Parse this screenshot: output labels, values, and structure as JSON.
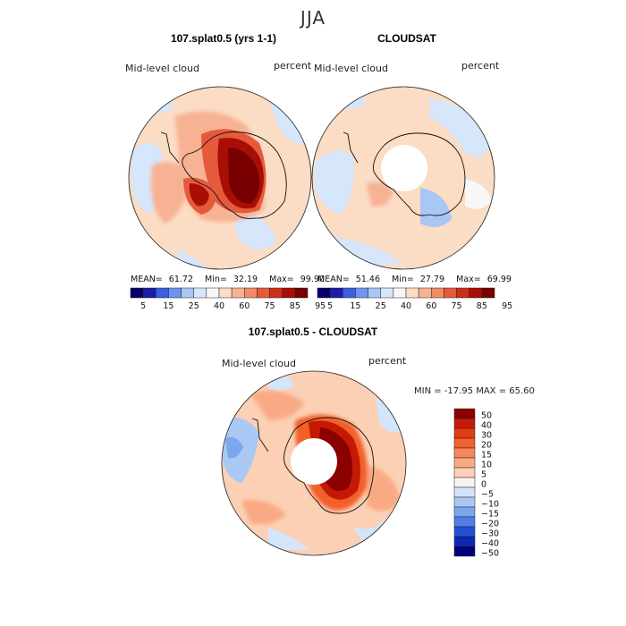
{
  "page": {
    "title": "JJA"
  },
  "panels": [
    {
      "title": "107.splat0.5 (yrs 1-1)",
      "variable": "Mid-level cloud",
      "units": "percent",
      "stats": {
        "mean_label": "MEAN=",
        "mean": "61.72",
        "min_label": "Min=",
        "min": "32.19",
        "max_label": "Max=",
        "max": "99.90"
      }
    },
    {
      "title": "CLOUDSAT",
      "variable": "Mid-level cloud",
      "units": "percent",
      "stats": {
        "mean_label": "MEAN=",
        "mean": "51.46",
        "min_label": "Min=",
        "min": "27.79",
        "max_label": "Max=",
        "max": "69.99"
      }
    },
    {
      "title": "107.splat0.5 - CLOUDSAT",
      "variable": "Mid-level cloud",
      "units": "percent",
      "minmax": "MIN = -17.95 MAX =   65.60"
    }
  ],
  "colorbars": {
    "abs": {
      "tick_labels": [
        "5",
        "15",
        "25",
        "40",
        "60",
        "75",
        "85",
        "95"
      ],
      "colors": [
        "#08006b",
        "#1c1ca8",
        "#3a5ee0",
        "#6f95ee",
        "#a9c6f5",
        "#d6e6fb",
        "#f7f7f7",
        "#fbdcc4",
        "#f7b294",
        "#f18a67",
        "#e65a3c",
        "#cc2e17",
        "#a80e05",
        "#780000"
      ]
    },
    "diff": {
      "labels": [
        "50",
        "40",
        "30",
        "20",
        "15",
        "10",
        "5",
        "0",
        "−5",
        "−10",
        "−15",
        "−20",
        "−30",
        "−40",
        "−50"
      ],
      "colors": [
        "#8b0000",
        "#c41a05",
        "#e33b12",
        "#f2602c",
        "#f7865a",
        "#f9aa85",
        "#fbd0b4",
        "#f7f3ee",
        "#d4e4fa",
        "#a9c8f4",
        "#7ca6ee",
        "#4f7fe6",
        "#2450d8",
        "#0c27b4",
        "#00007a"
      ]
    }
  },
  "chart_data": [
    {
      "type": "heatmap",
      "title": "107.splat0.5 (yrs 1-1)",
      "projection": "south-polar stereographic",
      "variable": "Mid-level cloud",
      "units": "percent",
      "mean": 61.72,
      "min": 32.19,
      "max": 99.9,
      "contour_levels": [
        5,
        10,
        15,
        20,
        25,
        30,
        40,
        50,
        60,
        70,
        75,
        80,
        85,
        90,
        95
      ]
    },
    {
      "type": "heatmap",
      "title": "CLOUDSAT",
      "projection": "south-polar stereographic",
      "variable": "Mid-level cloud",
      "units": "percent",
      "mean": 51.46,
      "min": 27.79,
      "max": 69.99,
      "contour_levels": [
        5,
        10,
        15,
        20,
        25,
        30,
        40,
        50,
        60,
        70,
        75,
        80,
        85,
        90,
        95
      ]
    },
    {
      "type": "heatmap",
      "title": "107.splat0.5 - CLOUDSAT",
      "projection": "south-polar stereographic",
      "variable": "Mid-level cloud",
      "units": "percent",
      "min": -17.95,
      "max": 65.6,
      "contour_levels": [
        -50,
        -40,
        -30,
        -20,
        -15,
        -10,
        -5,
        0,
        5,
        10,
        15,
        20,
        30,
        40,
        50
      ]
    }
  ]
}
